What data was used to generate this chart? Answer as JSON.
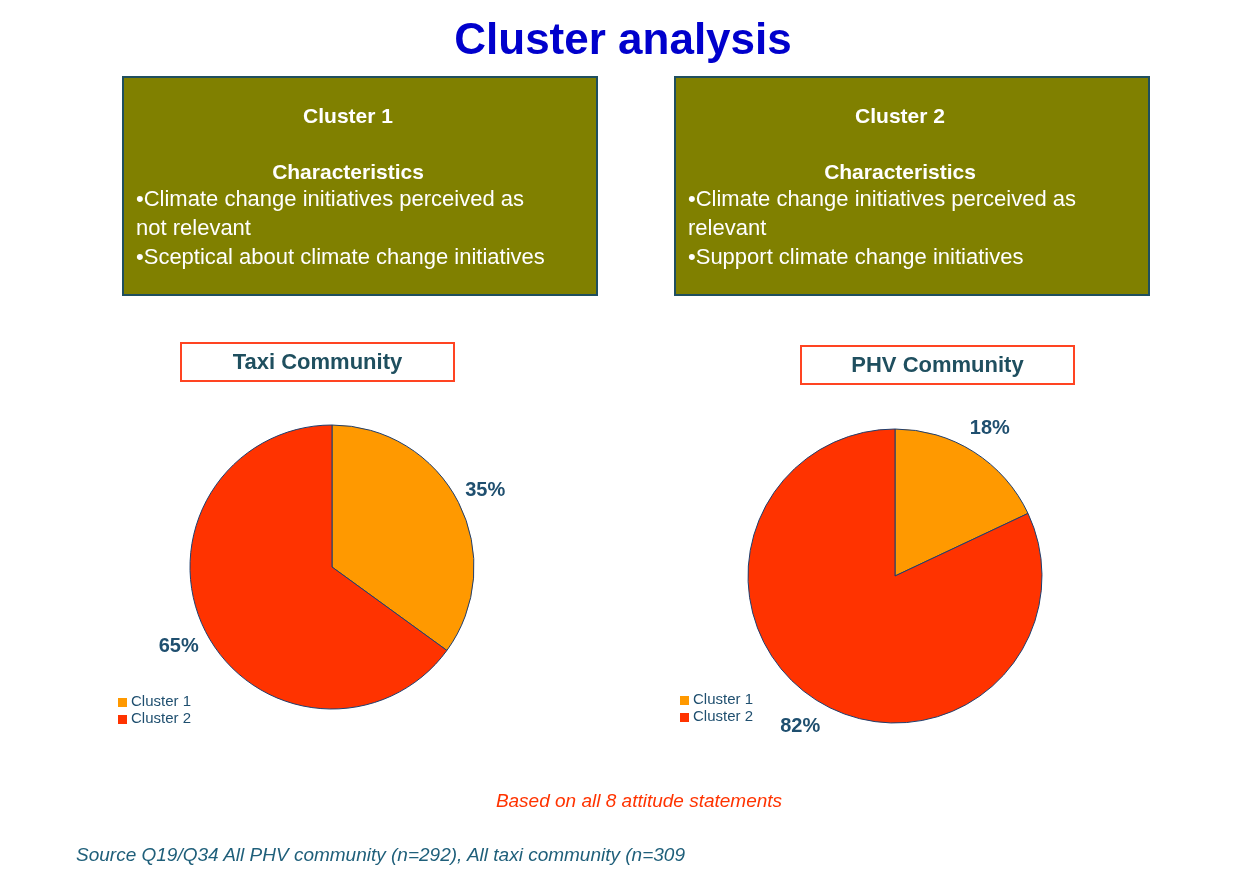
{
  "chart_data": [
    {
      "type": "other",
      "title": "Cluster analysis",
      "annotations": [
        "Based on all 8 attitude statements",
        "Source Q19/Q34 All PHV community (n=292), All taxi community (n=309"
      ]
    },
    {
      "type": "other",
      "title": "Cluster 1",
      "subtitle": "Characteristics",
      "annotations": [
        "•Climate change initiatives perceived as not relevant",
        "•Sceptical about climate change initiatives"
      ]
    },
    {
      "type": "other",
      "title": "Cluster 2",
      "subtitle": "Characteristics",
      "annotations": [
        "•Climate change initiatives perceived as relevant",
        "•Support climate change initiatives"
      ]
    },
    {
      "type": "pie",
      "title": "Taxi Community",
      "categories": [
        "Cluster 1",
        "Cluster 2"
      ],
      "values": [
        35,
        65
      ],
      "colors": [
        "#ff9900",
        "#ff3300"
      ],
      "value_labels": [
        "35%",
        "65%"
      ],
      "legend": "bottom left"
    },
    {
      "type": "pie",
      "title": "PHV Community",
      "categories": [
        "Cluster 1",
        "Cluster 2"
      ],
      "values": [
        18,
        82
      ],
      "colors": [
        "#ff9900",
        "#ff3300"
      ],
      "value_labels": [
        "18%",
        "82%"
      ],
      "legend": "bottom left"
    }
  ]
}
